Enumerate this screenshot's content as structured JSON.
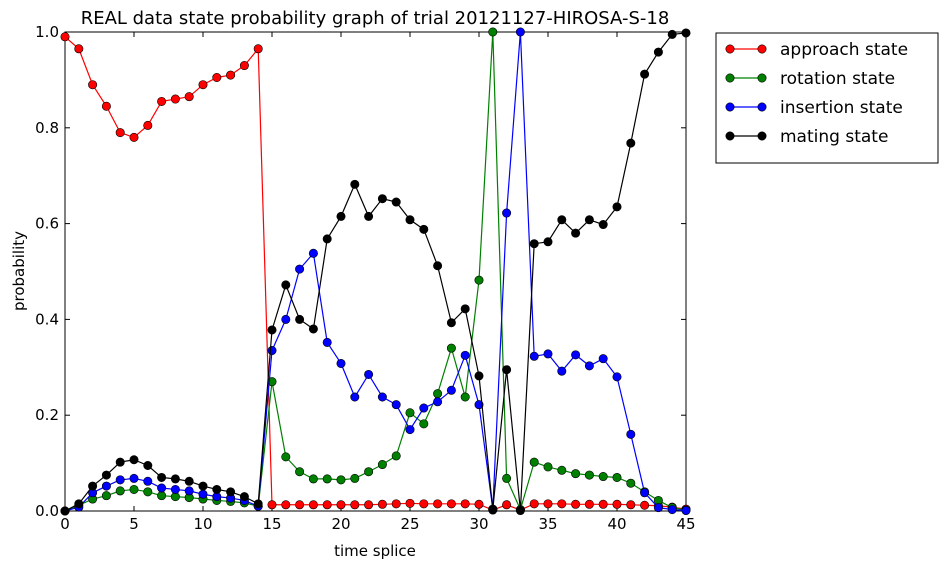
{
  "chart_data": {
    "type": "line",
    "title": "REAL data state probability graph of trial 20121127-HIROSA-S-18",
    "xlabel": "time splice",
    "ylabel": "probability",
    "xlim": [
      0,
      45
    ],
    "ylim": [
      0.0,
      1.0
    ],
    "x_ticks": [
      0,
      5,
      10,
      15,
      20,
      25,
      30,
      35,
      40,
      45
    ],
    "y_ticks": [
      0.0,
      0.2,
      0.4,
      0.6,
      0.8,
      1.0
    ],
    "y_tick_labels": [
      "0.0",
      "0.2",
      "0.4",
      "0.6",
      "0.8",
      "1.0"
    ],
    "grid": false,
    "legend_position": "outside-top-right",
    "x": [
      0,
      1,
      2,
      3,
      4,
      5,
      6,
      7,
      8,
      9,
      10,
      11,
      12,
      13,
      14,
      15,
      16,
      17,
      18,
      19,
      20,
      21,
      22,
      23,
      24,
      25,
      26,
      27,
      28,
      29,
      30,
      31,
      32,
      33,
      34,
      35,
      36,
      37,
      38,
      39,
      40,
      41,
      42,
      43,
      44,
      45
    ],
    "series": [
      {
        "name": "approach state",
        "color": "#ff0000",
        "values": [
          0.99,
          0.965,
          0.89,
          0.845,
          0.79,
          0.78,
          0.805,
          0.855,
          0.86,
          0.865,
          0.89,
          0.905,
          0.91,
          0.93,
          0.965,
          0.013,
          0.013,
          0.013,
          0.013,
          0.013,
          0.013,
          0.013,
          0.013,
          0.014,
          0.015,
          0.016,
          0.015,
          0.015,
          0.015,
          0.015,
          0.014,
          0.002,
          0.013,
          0.002,
          0.015,
          0.015,
          0.015,
          0.014,
          0.014,
          0.014,
          0.014,
          0.013,
          0.012,
          0.011,
          0.008,
          0.004
        ]
      },
      {
        "name": "rotation state",
        "color": "#008000",
        "values": [
          0.0,
          0.012,
          0.025,
          0.032,
          0.042,
          0.045,
          0.04,
          0.032,
          0.03,
          0.028,
          0.025,
          0.022,
          0.02,
          0.017,
          0.01,
          0.27,
          0.113,
          0.082,
          0.067,
          0.067,
          0.065,
          0.068,
          0.082,
          0.097,
          0.115,
          0.205,
          0.182,
          0.245,
          0.34,
          0.238,
          0.482,
          1.0,
          0.068,
          0.003,
          0.102,
          0.092,
          0.085,
          0.078,
          0.075,
          0.072,
          0.07,
          0.058,
          0.04,
          0.022,
          0.007,
          0.002
        ]
      },
      {
        "name": "insertion state",
        "color": "#0000ff",
        "values": [
          0.0,
          0.008,
          0.038,
          0.052,
          0.065,
          0.068,
          0.062,
          0.048,
          0.045,
          0.042,
          0.035,
          0.03,
          0.027,
          0.022,
          0.01,
          0.335,
          0.4,
          0.505,
          0.538,
          0.352,
          0.308,
          0.238,
          0.285,
          0.238,
          0.222,
          0.17,
          0.215,
          0.228,
          0.252,
          0.325,
          0.222,
          0.004,
          0.622,
          1.0,
          0.323,
          0.328,
          0.292,
          0.326,
          0.303,
          0.318,
          0.28,
          0.16,
          0.038,
          0.007,
          0.003,
          0.001
        ]
      },
      {
        "name": "mating state",
        "color": "#000000",
        "values": [
          0.0,
          0.015,
          0.052,
          0.075,
          0.102,
          0.107,
          0.095,
          0.07,
          0.067,
          0.062,
          0.052,
          0.045,
          0.04,
          0.03,
          0.015,
          0.378,
          0.472,
          0.4,
          0.38,
          0.568,
          0.615,
          0.682,
          0.615,
          0.652,
          0.645,
          0.608,
          0.588,
          0.512,
          0.393,
          0.422,
          0.282,
          0.003,
          0.295,
          0.001,
          0.558,
          0.562,
          0.608,
          0.58,
          0.608,
          0.598,
          0.635,
          0.768,
          0.912,
          0.958,
          0.995,
          0.998
        ]
      }
    ]
  }
}
